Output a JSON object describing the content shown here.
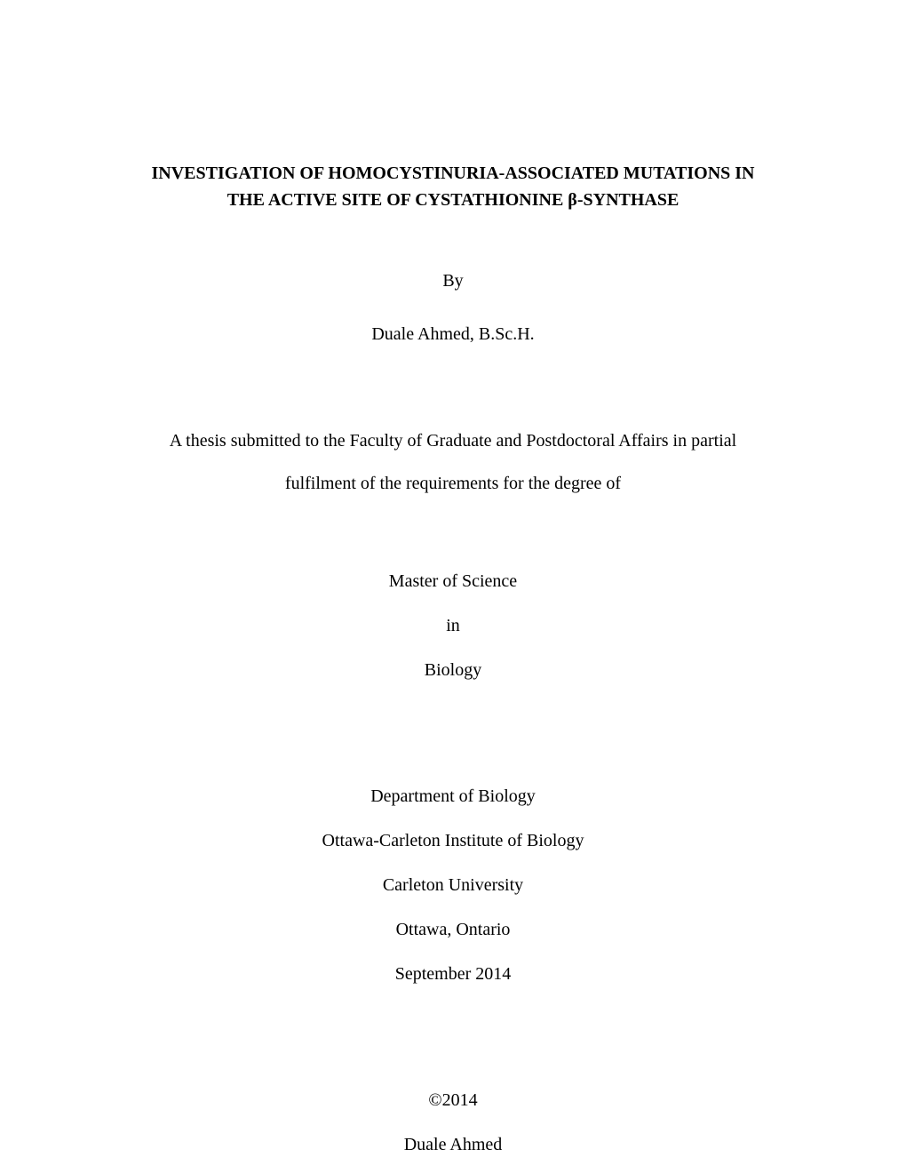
{
  "title_line1": "INVESTIGATION OF HOMOCYSTINURIA-ASSOCIATED MUTATIONS IN",
  "title_line2": "THE ACTIVE SITE OF CYSTATHIONINE β-SYNTHASE",
  "by": "By",
  "author": "Duale Ahmed, B.Sc.H.",
  "submission_line1": "A thesis submitted to the Faculty of Graduate and Postdoctoral Affairs in partial",
  "submission_line2": "fulfilment of the requirements for the degree of",
  "degree": "Master of Science",
  "in": "in",
  "subject": "Biology",
  "department": "Department of Biology",
  "institute": "Ottawa-Carleton Institute of Biology",
  "university": "Carleton University",
  "location": "Ottawa, Ontario",
  "date": "September 2014",
  "copyright": "©2014",
  "copyright_name": "Duale Ahmed",
  "colors": {
    "background": "#ffffff",
    "text": "#000000"
  },
  "typography": {
    "font_family": "Times New Roman",
    "title_fontsize": 20,
    "body_fontsize": 20,
    "title_weight": "bold"
  }
}
